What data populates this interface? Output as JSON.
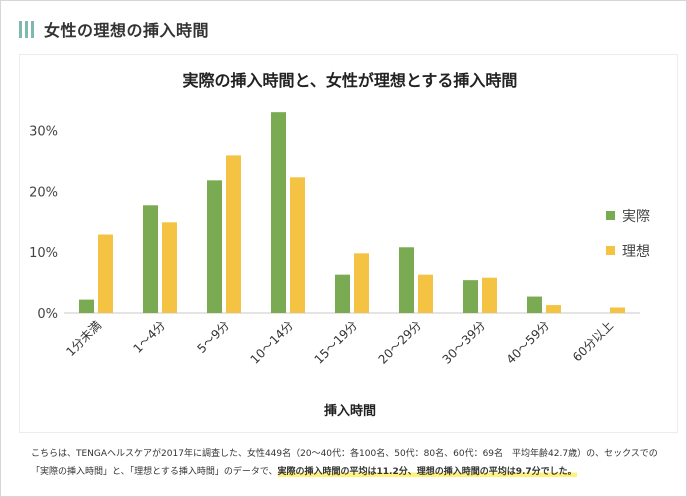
{
  "header": {
    "title": "女性の理想の挿入時間"
  },
  "chart_data": {
    "type": "bar",
    "title": "実際の挿入時間と、女性が理想とする挿入時間",
    "xlabel": "挿入時間",
    "ylabel": "",
    "categories": [
      "1分未満",
      "1〜4分",
      "5〜9分",
      "10〜14分",
      "15〜19分",
      "20〜29分",
      "30〜39分",
      "40〜59分",
      "60分以上"
    ],
    "ylim": [
      0,
      35
    ],
    "yticks": [
      0,
      10,
      20,
      30
    ],
    "ytick_labels": [
      "0%",
      "10%",
      "20%",
      "30%"
    ],
    "series": [
      {
        "name": "実際",
        "color": "#7aab52",
        "values": [
          2.2,
          17.7,
          21.8,
          33.0,
          6.3,
          10.8,
          5.4,
          2.7,
          0.0
        ]
      },
      {
        "name": "理想",
        "color": "#f5c343",
        "values": [
          12.9,
          14.9,
          25.9,
          22.3,
          9.8,
          6.3,
          5.8,
          1.3,
          0.9
        ]
      }
    ],
    "legend": "right",
    "grid": false
  },
  "footnote": {
    "text": "こちらは、TENGAヘルスケアが2017年に調査した、女性449名（20〜40代：各100名、50代：80名、60代：69名　平均年齢42.7歳）の、セックスでの「実際の挿入時間」と、「理想とする挿入時間」のデータで、",
    "highlight": "実際の挿入時間の平均は11.2分、理想の挿入時間の平均は9.7分でした。"
  }
}
